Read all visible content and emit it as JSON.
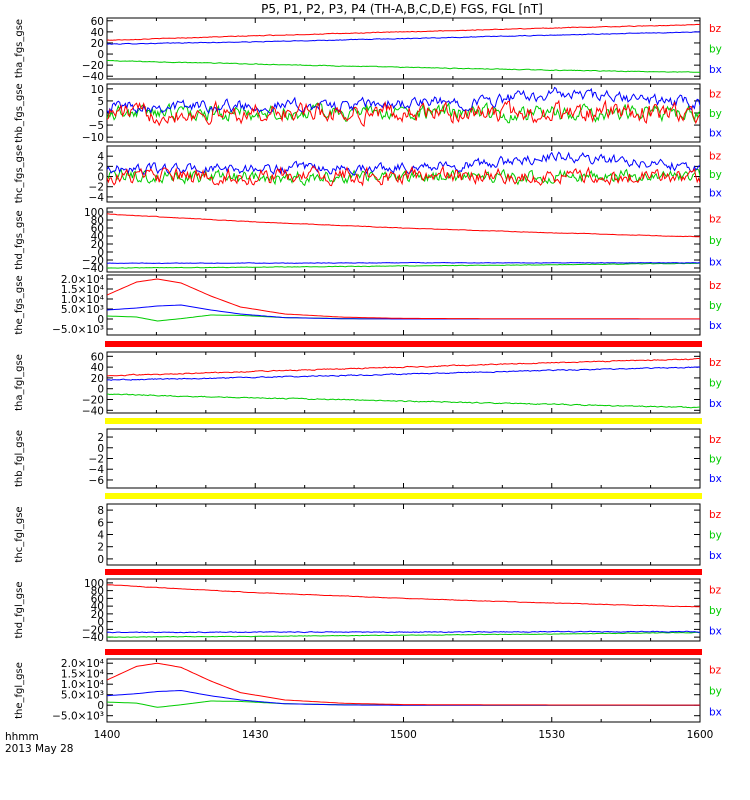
{
  "figure": {
    "title": "P5, P1, P2, P3, P4 (TH-A,B,C,D,E) FGS, FGL [nT]",
    "time_axis": {
      "tick_labels": [
        "1400",
        "1430",
        "1500",
        "1530",
        "1600"
      ],
      "unit_label": "hhmm",
      "date_label": "2013 May 28"
    },
    "bar_colors": {
      "red": "#ff0000",
      "yellow": "#ffff00"
    }
  },
  "chart_data": [
    {
      "type": "line",
      "ylabel": "tha_fgs_gse",
      "ylim": [
        -45,
        65
      ],
      "yticks": [
        60,
        40,
        20,
        0,
        -20,
        -40
      ],
      "ytick_labels": [
        "60",
        "40",
        "20",
        "0",
        "−20",
        "−40"
      ],
      "x_hours": [
        14.0,
        16.0
      ],
      "series": [
        {
          "name": "bz",
          "color": "#ff0000",
          "x": [
            14.0,
            14.5,
            15.0,
            15.5,
            16.0
          ],
          "y": [
            25,
            33,
            40,
            47,
            53
          ],
          "noise": 0.5
        },
        {
          "name": "by",
          "color": "#00cc00",
          "x": [
            14.0,
            14.5,
            15.0,
            15.5,
            16.0
          ],
          "y": [
            -12,
            -18,
            -24,
            -29,
            -33
          ],
          "noise": 0.5
        },
        {
          "name": "bx",
          "color": "#0000ff",
          "x": [
            14.0,
            14.5,
            15.0,
            15.5,
            16.0
          ],
          "y": [
            18,
            22,
            28,
            34,
            40
          ],
          "noise": 0.5
        }
      ],
      "bar": null
    },
    {
      "type": "line",
      "ylabel": "thb_fgs_gse",
      "ylim": [
        -12,
        12
      ],
      "yticks": [
        10,
        5,
        0,
        -5,
        -10
      ],
      "ytick_labels": [
        "10",
        "5",
        "0",
        "−5",
        "−10"
      ],
      "x_hours": [
        14.0,
        16.0
      ],
      "series": [
        {
          "name": "bz",
          "color": "#ff0000",
          "x": [
            14.0,
            16.0
          ],
          "y": [
            0,
            0
          ],
          "noise": 3
        },
        {
          "name": "by",
          "color": "#00cc00",
          "x": [
            14.0,
            16.0
          ],
          "y": [
            0,
            0
          ],
          "noise": 2.5
        },
        {
          "name": "bx",
          "color": "#0000ff",
          "x": [
            14.0,
            14.8,
            15.3,
            15.5,
            16.0
          ],
          "y": [
            3,
            3,
            5,
            8,
            4
          ],
          "noise": 2
        }
      ],
      "bar": null
    },
    {
      "type": "line",
      "ylabel": "thc_fgs_gse",
      "ylim": [
        -5,
        6
      ],
      "yticks": [
        4,
        2,
        0,
        -2,
        -4
      ],
      "ytick_labels": [
        "4",
        "2",
        "0",
        "−2",
        "−4"
      ],
      "x_hours": [
        14.0,
        16.0
      ],
      "series": [
        {
          "name": "bz",
          "color": "#ff0000",
          "x": [
            14.0,
            16.0
          ],
          "y": [
            0,
            0
          ],
          "noise": 1.2
        },
        {
          "name": "by",
          "color": "#00cc00",
          "x": [
            14.0,
            16.0
          ],
          "y": [
            0,
            0
          ],
          "noise": 1.0
        },
        {
          "name": "bx",
          "color": "#0000ff",
          "x": [
            14.0,
            14.8,
            15.3,
            15.5,
            16.0
          ],
          "y": [
            1.5,
            1.5,
            2.5,
            4,
            2
          ],
          "noise": 0.8
        }
      ],
      "bar": null
    },
    {
      "type": "line",
      "ylabel": "thd_fgs_gse",
      "ylim": [
        -50,
        110
      ],
      "yticks": [
        100,
        80,
        60,
        40,
        20,
        0,
        -20,
        -40
      ],
      "ytick_labels": [
        "100",
        "80",
        "60",
        "40",
        "20",
        "0",
        "−20",
        "−40"
      ],
      "x_hours": [
        14.0,
        16.0
      ],
      "series": [
        {
          "name": "bz",
          "color": "#ff0000",
          "x": [
            14.0,
            14.5,
            15.0,
            15.5,
            16.0
          ],
          "y": [
            95,
            75,
            60,
            48,
            38
          ],
          "noise": 0.5
        },
        {
          "name": "by",
          "color": "#00cc00",
          "x": [
            14.0,
            14.5,
            15.0,
            15.5,
            16.0
          ],
          "y": [
            -40,
            -38,
            -35,
            -32,
            -28
          ],
          "noise": 0.5
        },
        {
          "name": "bx",
          "color": "#0000ff",
          "x": [
            14.0,
            14.5,
            15.0,
            15.5,
            16.0
          ],
          "y": [
            -28,
            -28,
            -27,
            -27,
            -27
          ],
          "noise": 0.5
        }
      ],
      "bar": null
    },
    {
      "type": "line",
      "ylabel": "the_fgs_gse",
      "ylim": [
        -8000,
        22000
      ],
      "yticks": [
        20000,
        15000,
        10000,
        5000,
        0,
        -5000
      ],
      "ytick_labels": [
        "2.0×10⁴",
        "1.5×10⁴",
        "1.0×10⁴",
        "5.0×10³",
        "0",
        "−5.0×10³"
      ],
      "x_hours": [
        14.0,
        16.0
      ],
      "series": [
        {
          "name": "bz",
          "color": "#ff0000",
          "x": [
            14.0,
            14.1,
            14.17,
            14.25,
            14.35,
            14.45,
            14.6,
            14.8,
            15.0,
            15.3,
            15.6,
            16.0
          ],
          "y": [
            12000,
            18500,
            20000,
            18000,
            11500,
            6000,
            2500,
            900,
            300,
            150,
            100,
            50
          ],
          "noise": 0
        },
        {
          "name": "by",
          "color": "#00cc00",
          "x": [
            14.0,
            14.1,
            14.17,
            14.25,
            14.35,
            14.45,
            14.6,
            14.8,
            15.0,
            15.3,
            15.6,
            16.0
          ],
          "y": [
            1500,
            1000,
            -1000,
            200,
            2000,
            1800,
            700,
            200,
            50,
            20,
            10,
            0
          ],
          "noise": 0
        },
        {
          "name": "bx",
          "color": "#0000ff",
          "x": [
            14.0,
            14.1,
            14.17,
            14.25,
            14.35,
            14.45,
            14.6,
            14.8,
            15.0,
            15.3,
            15.6,
            16.0
          ],
          "y": [
            4500,
            5500,
            6500,
            7000,
            4500,
            2500,
            700,
            100,
            0,
            0,
            0,
            0
          ],
          "noise": 0
        }
      ],
      "bar": "red"
    },
    {
      "type": "line",
      "ylabel": "tha_fgl_gse",
      "ylim": [
        -45,
        68
      ],
      "yticks": [
        60,
        40,
        20,
        0,
        -20,
        -40
      ],
      "ytick_labels": [
        "60",
        "40",
        "20",
        "0",
        "−20",
        "−40"
      ],
      "x_hours": [
        14.0,
        16.0
      ],
      "series": [
        {
          "name": "bz",
          "color": "#ff0000",
          "x": [
            14.0,
            14.5,
            15.0,
            15.5,
            16.0
          ],
          "y": [
            24,
            32,
            40,
            48,
            55
          ],
          "noise": 0.8
        },
        {
          "name": "by",
          "color": "#00cc00",
          "x": [
            14.0,
            14.5,
            15.0,
            15.5,
            16.0
          ],
          "y": [
            -10,
            -17,
            -23,
            -29,
            -35
          ],
          "noise": 0.8
        },
        {
          "name": "bx",
          "color": "#0000ff",
          "x": [
            14.0,
            14.5,
            15.0,
            15.5,
            16.0
          ],
          "y": [
            16,
            21,
            27,
            34,
            40
          ],
          "noise": 0.8
        }
      ],
      "bar": "yellow"
    },
    {
      "type": "line",
      "ylabel": "thb_fgl_gse",
      "ylim": [
        -7.5,
        3.5
      ],
      "yticks": [
        2,
        0,
        -2,
        -4,
        -6
      ],
      "ytick_labels": [
        "2",
        "0",
        "−2",
        "−4",
        "−6"
      ],
      "x_hours": [
        14.0,
        16.0
      ],
      "series": [],
      "legend": [
        "bz",
        "by",
        "bx"
      ],
      "bar": "yellow"
    },
    {
      "type": "line",
      "ylabel": "thc_fgl_gse",
      "ylim": [
        -1,
        9
      ],
      "yticks": [
        8,
        6,
        4,
        2,
        0
      ],
      "ytick_labels": [
        "8",
        "6",
        "4",
        "2",
        "0"
      ],
      "x_hours": [
        14.0,
        16.0
      ],
      "series": [],
      "legend": [
        "bz",
        "by",
        "bx"
      ],
      "bar": "red"
    },
    {
      "type": "line",
      "ylabel": "thd_fgl_gse",
      "ylim": [
        -50,
        110
      ],
      "yticks": [
        100,
        80,
        60,
        40,
        20,
        0,
        -20,
        -40
      ],
      "ytick_labels": [
        "100",
        "80",
        "60",
        "40",
        "20",
        "0",
        "−20",
        "−40"
      ],
      "x_hours": [
        14.0,
        16.0
      ],
      "series": [
        {
          "name": "bz",
          "color": "#ff0000",
          "x": [
            14.0,
            14.5,
            15.0,
            15.5,
            16.0
          ],
          "y": [
            95,
            75,
            60,
            48,
            38
          ],
          "noise": 0.5
        },
        {
          "name": "by",
          "color": "#00cc00",
          "x": [
            14.0,
            14.5,
            15.0,
            15.5,
            16.0
          ],
          "y": [
            -40,
            -38,
            -35,
            -32,
            -28
          ],
          "noise": 0.5
        },
        {
          "name": "bx",
          "color": "#0000ff",
          "x": [
            14.0,
            14.5,
            15.0,
            15.5,
            16.0
          ],
          "y": [
            -28,
            -27,
            -27,
            -26,
            -26
          ],
          "noise": 0.8
        }
      ],
      "bar": "red"
    },
    {
      "type": "line",
      "ylabel": "the_fgl_gse",
      "ylim": [
        -8000,
        22000
      ],
      "yticks": [
        20000,
        15000,
        10000,
        5000,
        0,
        -5000
      ],
      "ytick_labels": [
        "2.0×10⁴",
        "1.5×10⁴",
        "1.0×10⁴",
        "5.0×10³",
        "0",
        "−5.0×10³"
      ],
      "x_hours": [
        14.0,
        16.0
      ],
      "series": [
        {
          "name": "bz",
          "color": "#ff0000",
          "x": [
            14.0,
            14.1,
            14.17,
            14.25,
            14.35,
            14.45,
            14.6,
            14.8,
            15.0,
            15.3,
            15.6,
            16.0
          ],
          "y": [
            12000,
            18500,
            20000,
            18000,
            11500,
            6000,
            2500,
            900,
            300,
            150,
            100,
            50
          ],
          "noise": 0
        },
        {
          "name": "by",
          "color": "#00cc00",
          "x": [
            14.0,
            14.1,
            14.17,
            14.25,
            14.35,
            14.45,
            14.6,
            14.8,
            15.0,
            15.3,
            15.6,
            16.0
          ],
          "y": [
            1500,
            1000,
            -1000,
            200,
            2000,
            1800,
            700,
            200,
            50,
            20,
            10,
            0
          ],
          "noise": 0
        },
        {
          "name": "bx",
          "color": "#0000ff",
          "x": [
            14.0,
            14.1,
            14.17,
            14.25,
            14.35,
            14.45,
            14.6,
            14.8,
            15.0,
            15.3,
            15.6,
            16.0
          ],
          "y": [
            4500,
            5500,
            6500,
            7000,
            4500,
            2500,
            700,
            100,
            0,
            0,
            0,
            0
          ],
          "noise": 0
        }
      ],
      "bar": null
    }
  ]
}
